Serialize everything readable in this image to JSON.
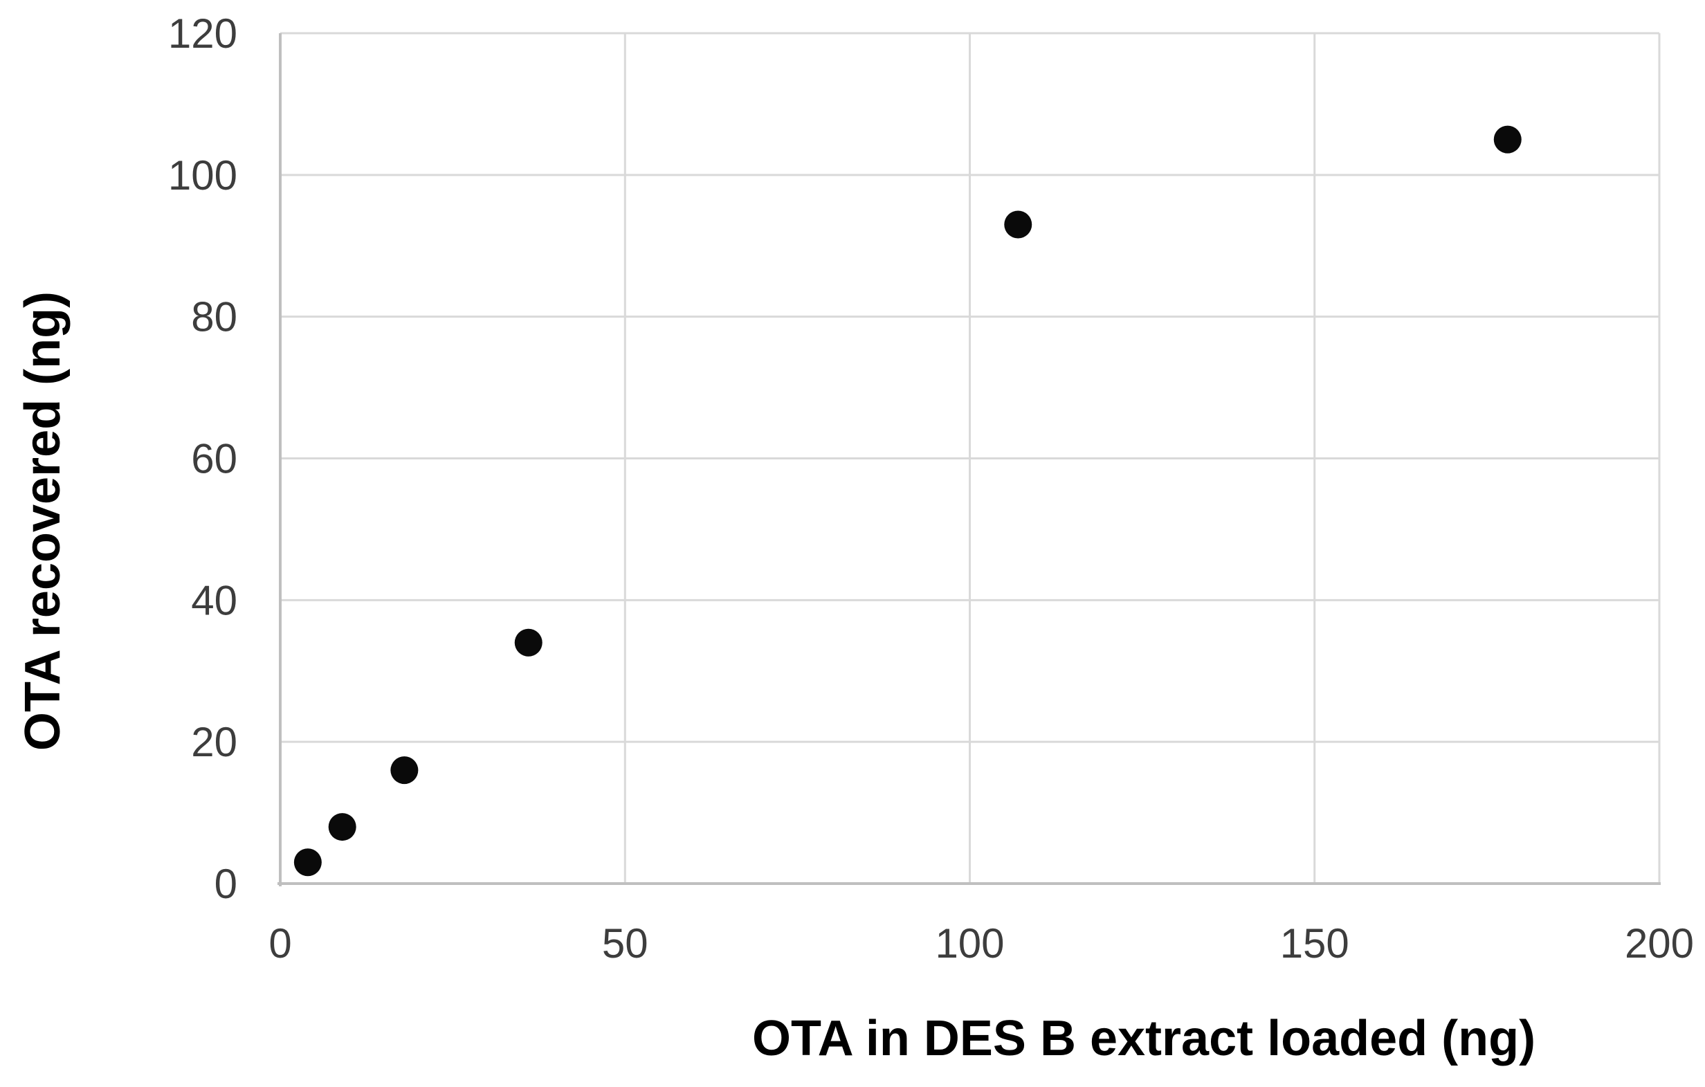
{
  "chart_data": {
    "type": "scatter",
    "title": "",
    "xlabel": "OTA in DES B extract loaded (ng)",
    "ylabel": "OTA recovered (ng)",
    "x": [
      4,
      9,
      18,
      36,
      107,
      178
    ],
    "y": [
      3,
      8,
      16,
      34,
      93,
      105
    ],
    "xlim": [
      0,
      200
    ],
    "ylim": [
      0,
      120
    ],
    "x_ticks": [
      0,
      50,
      100,
      150,
      200
    ],
    "y_ticks": [
      0,
      20,
      40,
      60,
      80,
      100,
      120
    ],
    "grid": true,
    "legend": "none",
    "marker": {
      "shape": "circle",
      "color": "#0a0a0a",
      "radius_px": 20
    },
    "colors": {
      "background": "#ffffff",
      "gridline": "#d9d9d9",
      "axis_line": "#bfbfbf",
      "tick_label": "#3d3d3d",
      "axis_title": "#000000",
      "point": "#0a0a0a"
    }
  }
}
